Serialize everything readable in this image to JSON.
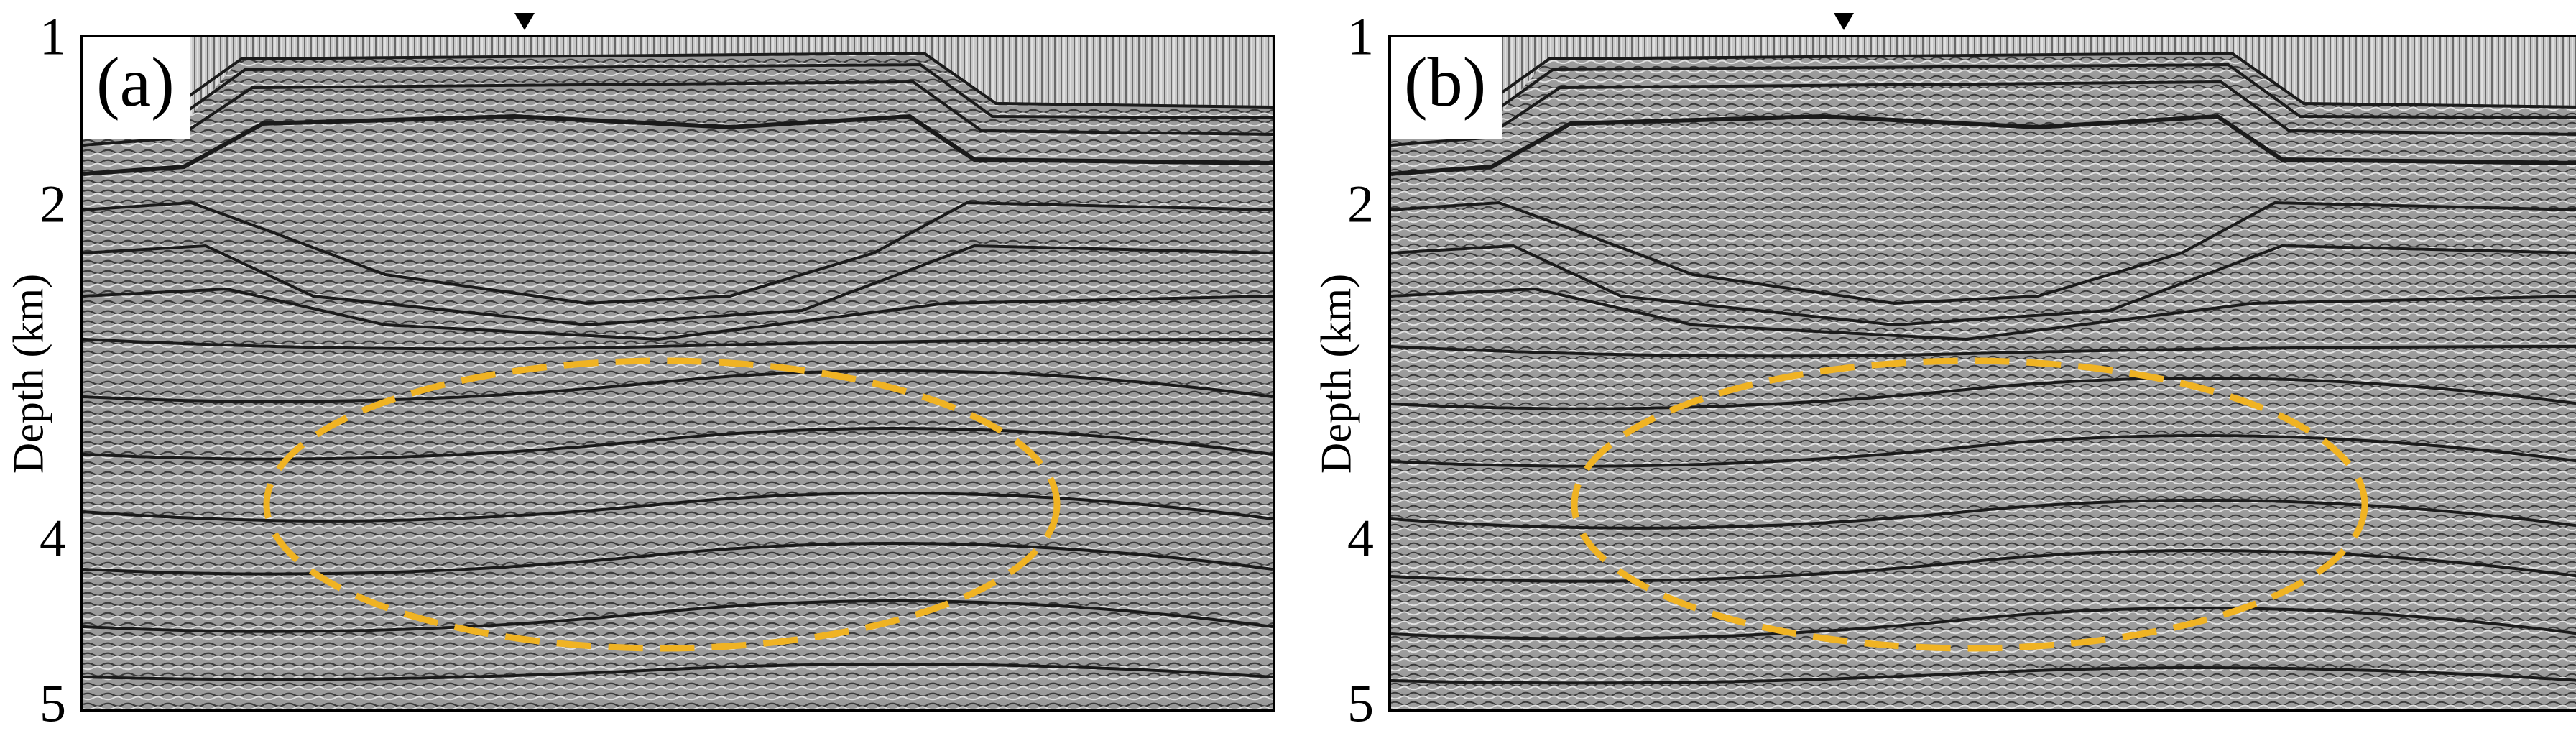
{
  "panels": [
    {
      "label": "(a)",
      "ticks": [
        "1",
        "2",
        "4",
        "5"
      ],
      "ylabel": "Depth (km)"
    },
    {
      "label": "(b)",
      "ticks": [
        "1",
        "2",
        "4",
        "5"
      ],
      "ylabel": "Depth (km)"
    }
  ],
  "colors": {
    "ellipse": "#f0b323",
    "background": "#8a8a8a"
  },
  "icons": {
    "marker": "down-triangle-marker"
  }
}
